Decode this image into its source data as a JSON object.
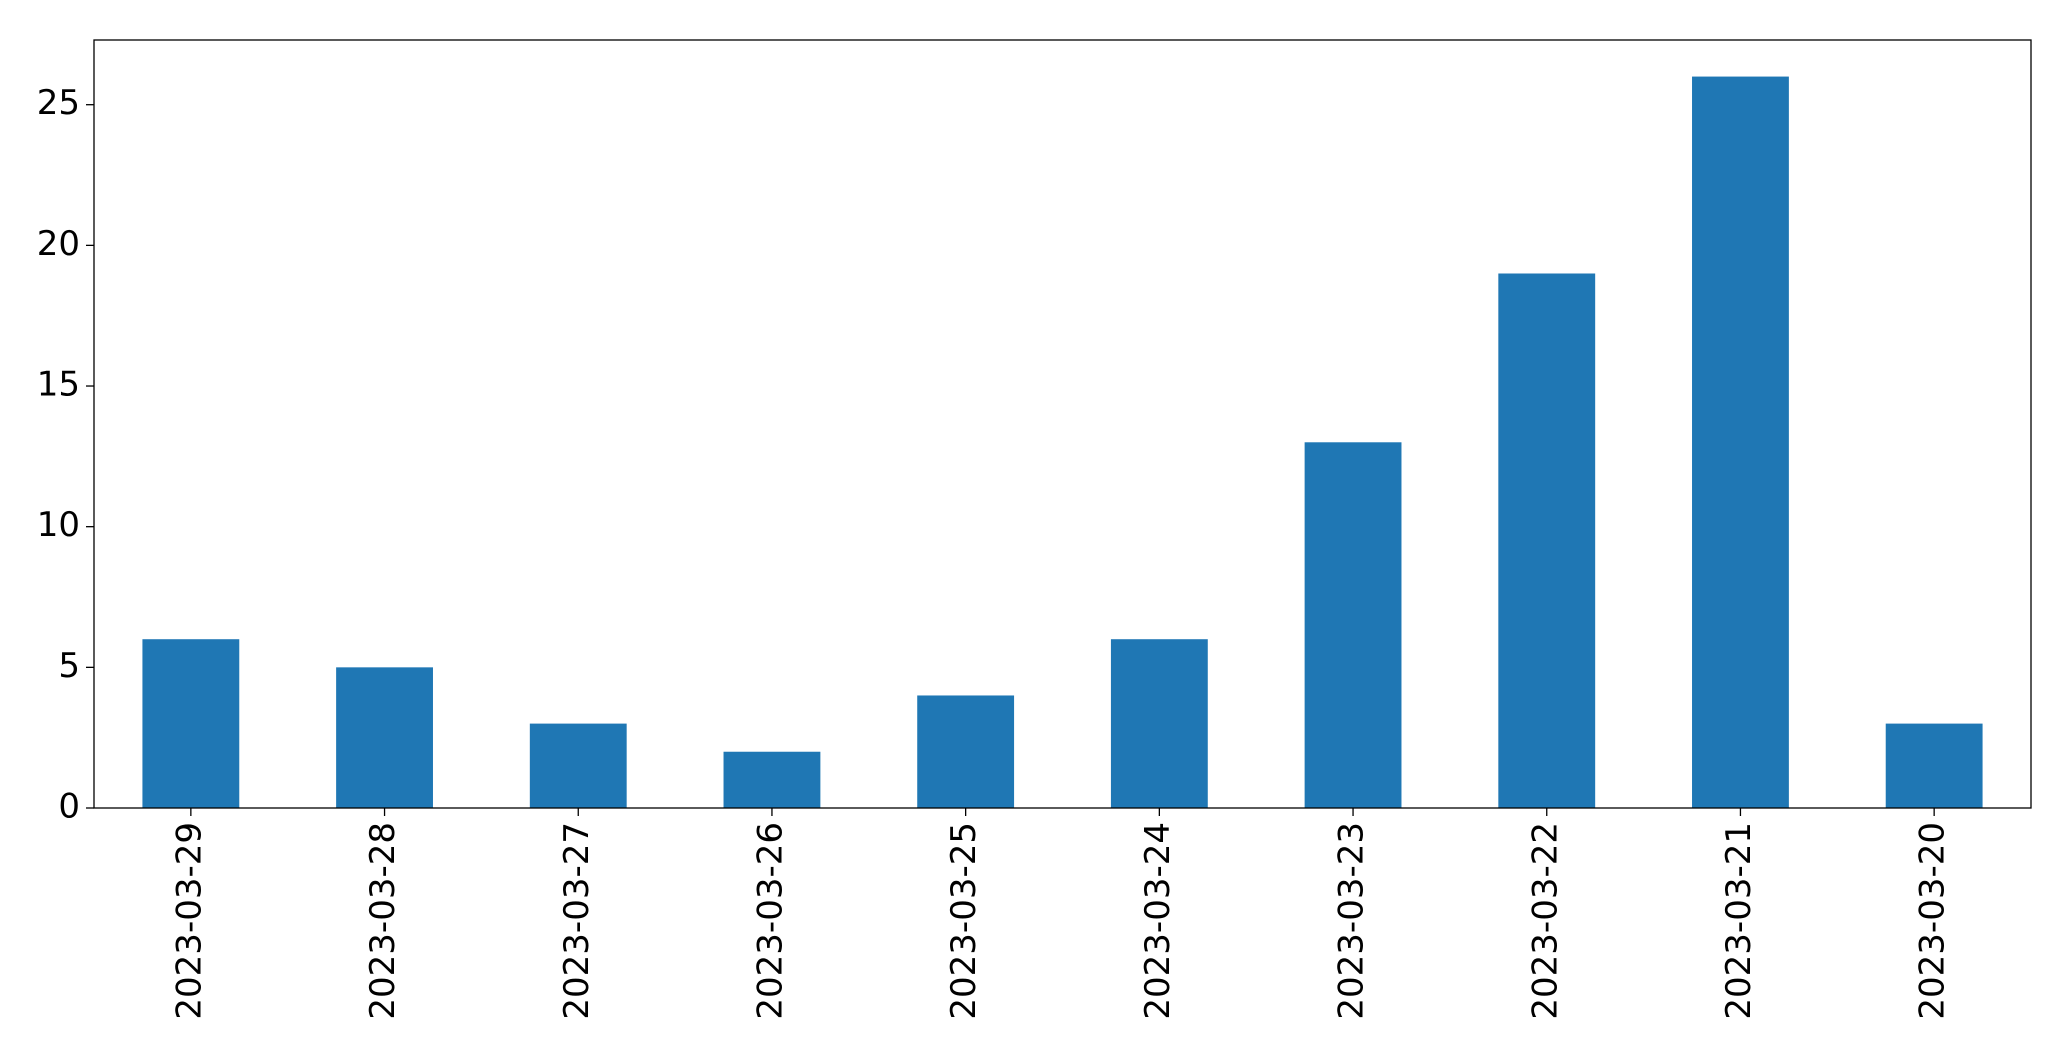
{
  "chart_data": {
    "type": "bar",
    "categories": [
      "2023-03-29",
      "2023-03-28",
      "2023-03-27",
      "2023-03-26",
      "2023-03-25",
      "2023-03-24",
      "2023-03-23",
      "2023-03-22",
      "2023-03-21",
      "2023-03-20"
    ],
    "values": [
      6,
      5,
      3,
      2,
      4,
      6,
      13,
      19,
      26,
      3
    ],
    "color": "#1f77b4",
    "ylim": [
      0,
      27.3
    ],
    "yticks": [
      0,
      5,
      10,
      15,
      20,
      25
    ],
    "grid": false
  }
}
